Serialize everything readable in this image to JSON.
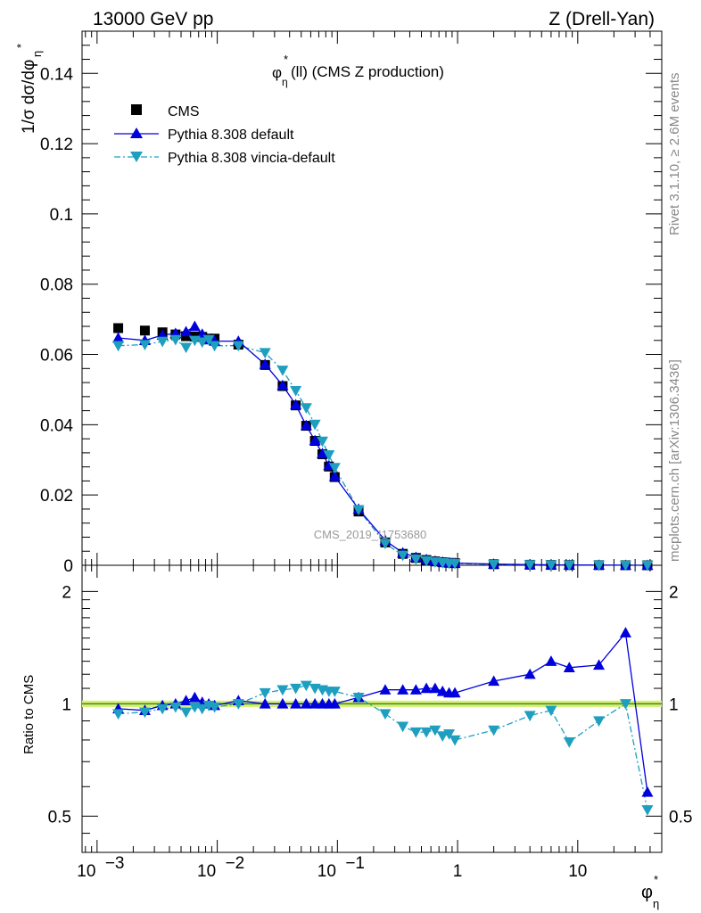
{
  "header": {
    "left": "13000 GeV pp",
    "right": "Z (Drell-Yan)"
  },
  "plot_title": "(ll) (CMS Z production)",
  "side_text": {
    "top": "Rivet 3.1.10, ≥ 2.6M events",
    "bottom": "mcplots.cern.ch [arXiv:1306.3436]"
  },
  "watermark": "CMS_2019_I1753680",
  "axis_labels": {
    "y_main": "1/σ dσ/dφη*",
    "y_ratio": "Ratio to CMS",
    "x": "φη*"
  },
  "legend": [
    {
      "label": "CMS",
      "marker": "square"
    },
    {
      "label": "Pythia 8.308 default",
      "marker": "triangle-up"
    },
    {
      "label": "Pythia 8.308 vincia-default",
      "marker": "triangle-down"
    }
  ],
  "colors": {
    "cms": "#000000",
    "default": "#0000dd",
    "vincia": "#1f9fc0",
    "band": "#d8f07a",
    "ref_line": "#3a8a1a"
  },
  "chart_data": [
    {
      "type": "scatter",
      "panel": "main",
      "xscale": "log",
      "xlim": [
        0.00075,
        50
      ],
      "ylim": [
        0,
        0.152
      ],
      "yticks": [
        0,
        0.02,
        0.04,
        0.06,
        0.08,
        0.1,
        0.12,
        0.14
      ],
      "ytick_labels": [
        "0",
        "0.02",
        "0.04",
        "0.06",
        "0.08",
        "0.1",
        "0.12",
        "0.14"
      ],
      "x": [
        0.0015,
        0.0025,
        0.0035,
        0.0045,
        0.0055,
        0.0065,
        0.0075,
        0.0085,
        0.0095,
        0.015,
        0.025,
        0.035,
        0.045,
        0.055,
        0.065,
        0.075,
        0.085,
        0.095,
        0.15,
        0.25,
        0.35,
        0.45,
        0.55,
        0.65,
        0.75,
        0.85,
        0.95,
        2,
        4,
        6,
        8.5,
        15,
        25,
        38
      ],
      "series": [
        {
          "name": "CMS",
          "values": [
            0.0675,
            0.0668,
            0.0663,
            0.0657,
            0.0652,
            0.0651,
            0.065,
            0.0645,
            0.0645,
            0.0628,
            0.057,
            0.051,
            0.0455,
            0.0397,
            0.0354,
            0.0316,
            0.0281,
            0.0251,
            0.0153,
            0.0065,
            0.00325,
            0.0021,
            0.0015,
            0.0011,
            0.00085,
            0.0007,
            0.0006,
            0.0003,
            0.00015,
            0.0001,
            7e-05,
            4e-05,
            2e-05,
            1e-05
          ]
        },
        {
          "name": "Pythia 8.308 default",
          "values": [
            0.0647,
            0.064,
            0.0655,
            0.066,
            0.0665,
            0.068,
            0.0658,
            0.0642,
            0.0638,
            0.0638,
            0.0572,
            0.0512,
            0.0457,
            0.0398,
            0.0355,
            0.0318,
            0.0284,
            0.0253,
            0.016,
            0.00708,
            0.00354,
            0.00229,
            0.00165,
            0.00121,
            0.00092,
            0.00075,
            0.00064,
            0.00035,
            0.00018,
            0.00013,
            9e-05,
            5e-05,
            3e-05,
            1e-05
          ]
        },
        {
          "name": "Pythia 8.308 vincia-default",
          "values": [
            0.0625,
            0.0628,
            0.0637,
            0.0642,
            0.062,
            0.064,
            0.0635,
            0.0642,
            0.0625,
            0.0625,
            0.0605,
            0.0555,
            0.0497,
            0.0448,
            0.0401,
            0.0353,
            0.0314,
            0.0278,
            0.0158,
            0.0062,
            0.00283,
            0.00176,
            0.00127,
            0.00093,
            0.0007,
            0.00058,
            0.00049,
            0.00025,
            0.00014,
            0.0001,
            6e-05,
            4e-05,
            2e-05,
            1e-05
          ]
        }
      ]
    },
    {
      "type": "line",
      "panel": "ratio",
      "title": "",
      "xscale": "log",
      "yscale": "log",
      "xlim": [
        0.00075,
        50
      ],
      "ylim": [
        0.4,
        2.35
      ],
      "yticks": [
        0.5,
        1,
        2
      ],
      "ytick_labels": [
        "0.5",
        "1",
        "2"
      ],
      "xticks": [
        0.001,
        0.01,
        0.1,
        1,
        10
      ],
      "xtick_labels": [
        "10−3",
        "10−2",
        "10−1",
        "1",
        "10"
      ],
      "x": [
        0.0015,
        0.0025,
        0.0035,
        0.0045,
        0.0055,
        0.0065,
        0.0075,
        0.0085,
        0.0095,
        0.015,
        0.025,
        0.035,
        0.045,
        0.055,
        0.065,
        0.075,
        0.085,
        0.095,
        0.15,
        0.25,
        0.35,
        0.45,
        0.55,
        0.65,
        0.75,
        0.85,
        0.95,
        2,
        4,
        6,
        8.5,
        15,
        25,
        38
      ],
      "series": [
        {
          "name": "Pythia 8.308 default",
          "values": [
            0.97,
            0.96,
            0.99,
            1.0,
            1.02,
            1.04,
            1.01,
            1.0,
            0.99,
            1.02,
            1.0,
            1.0,
            1.0,
            1.0,
            1.0,
            1.0,
            1.0,
            1.0,
            1.04,
            1.09,
            1.09,
            1.09,
            1.1,
            1.1,
            1.08,
            1.07,
            1.07,
            1.15,
            1.2,
            1.3,
            1.25,
            1.27,
            1.55,
            0.58
          ]
        },
        {
          "name": "Pythia 8.308 vincia-default",
          "values": [
            0.94,
            0.95,
            0.97,
            0.98,
            0.95,
            0.98,
            0.97,
            0.99,
            0.98,
            1.0,
            1.07,
            1.09,
            1.1,
            1.12,
            1.1,
            1.09,
            1.08,
            1.08,
            1.04,
            0.94,
            0.87,
            0.84,
            0.84,
            0.85,
            0.82,
            0.83,
            0.8,
            0.85,
            0.93,
            0.96,
            0.79,
            0.9,
            1.0,
            0.52
          ]
        }
      ],
      "ref_band": [
        0.98,
        1.02
      ]
    }
  ]
}
